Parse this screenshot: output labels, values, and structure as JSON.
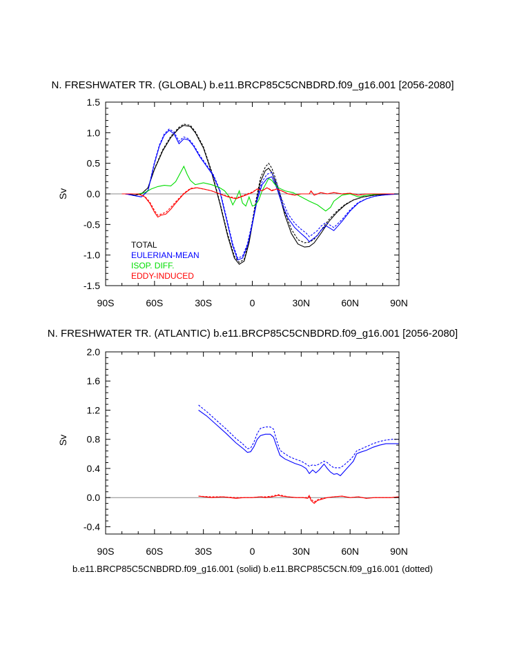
{
  "caption": "b.e11.BRCP85C5CNBDRD.f09_g16.001 (solid) b.e11.BRCP85C5CN.f09_g16.001 (dotted)",
  "colors": {
    "total": "#000000",
    "eulerian": "#0000ff",
    "isop": "#00dd00",
    "eddy": "#ff0000",
    "zero": "#888888"
  },
  "chart_data": [
    {
      "type": "line",
      "title": "N. FRESHWATER TR. (GLOBAL) b.e11.BRCP85C5CNBDRD.f09_g16.001 [2056-2080]",
      "xlabel": "",
      "ylabel": "Sv",
      "xlim": [
        -90,
        90
      ],
      "ylim": [
        -1.5,
        1.5
      ],
      "xticks": [
        -90,
        -60,
        -30,
        0,
        30,
        60,
        90
      ],
      "xticklabels": [
        "90S",
        "60S",
        "30S",
        "0",
        "30N",
        "60N",
        "90N"
      ],
      "yticks": [
        -1.5,
        -1.0,
        -0.5,
        0.0,
        0.5,
        1.0,
        1.5
      ],
      "yticklabels": [
        "-1.5",
        "-1.0",
        "-0.5",
        "0.0",
        "0.5",
        "1.0",
        "1.5"
      ],
      "legend": {
        "position": "lower-left",
        "entries": [
          "TOTAL",
          "EULERIAN-MEAN",
          "ISOP. DIFF.",
          "EDDY-INDUCED"
        ]
      },
      "series": [
        {
          "name": "TOTAL",
          "style": "solid",
          "color": "#000000",
          "x": [
            -78,
            -72,
            -68,
            -64,
            -60,
            -55,
            -50,
            -45,
            -42,
            -38,
            -35,
            -30,
            -25,
            -20,
            -15,
            -11,
            -8,
            -5,
            -2,
            2,
            5,
            8,
            10,
            12,
            14,
            17,
            20,
            24,
            28,
            32,
            35,
            38,
            42,
            47,
            52,
            57,
            62,
            68,
            75,
            80,
            90
          ],
          "y": [
            0,
            -0.02,
            0,
            0.1,
            0.4,
            0.7,
            0.92,
            1.07,
            1.12,
            1.1,
            1.0,
            0.75,
            0.35,
            -0.15,
            -0.7,
            -1.05,
            -1.15,
            -1.1,
            -0.8,
            -0.2,
            0.2,
            0.38,
            0.42,
            0.35,
            0.2,
            -0.05,
            -0.35,
            -0.65,
            -0.82,
            -0.87,
            -0.86,
            -0.8,
            -0.65,
            -0.45,
            -0.3,
            -0.18,
            -0.1,
            -0.05,
            -0.02,
            -0.01,
            0
          ]
        },
        {
          "name": "TOTAL (dotted)",
          "style": "dotted",
          "color": "#000000",
          "x": [
            -78,
            -72,
            -68,
            -64,
            -60,
            -55,
            -50,
            -45,
            -42,
            -38,
            -35,
            -30,
            -25,
            -20,
            -15,
            -11,
            -8,
            -5,
            -2,
            2,
            5,
            8,
            10,
            12,
            14,
            17,
            20,
            24,
            28,
            32,
            35,
            38,
            42,
            47,
            52,
            57,
            62,
            68,
            75,
            80,
            90
          ],
          "y": [
            0,
            -0.02,
            0,
            0.1,
            0.41,
            0.72,
            0.94,
            1.09,
            1.14,
            1.12,
            1.02,
            0.77,
            0.37,
            -0.13,
            -0.67,
            -1.02,
            -1.12,
            -1.07,
            -0.76,
            -0.14,
            0.26,
            0.44,
            0.5,
            0.42,
            0.27,
            0.0,
            -0.3,
            -0.58,
            -0.75,
            -0.8,
            -0.79,
            -0.74,
            -0.6,
            -0.42,
            -0.28,
            -0.17,
            -0.1,
            -0.05,
            -0.02,
            -0.01,
            0
          ]
        },
        {
          "name": "EULERIAN-MEAN",
          "style": "solid",
          "color": "#0000ff",
          "x": [
            -78,
            -72,
            -68,
            -64,
            -60,
            -57,
            -54,
            -51,
            -48,
            -45,
            -42,
            -39,
            -36,
            -32,
            -28,
            -24,
            -20,
            -16,
            -12,
            -9,
            -6,
            -3,
            0,
            3,
            6,
            9,
            12,
            15,
            18,
            22,
            26,
            30,
            33,
            35,
            38,
            40,
            42,
            45,
            47,
            50,
            55,
            60,
            65,
            70,
            75,
            80,
            90
          ],
          "y": [
            0,
            -0.03,
            -0.05,
            0.05,
            0.5,
            0.78,
            0.96,
            1.04,
            0.98,
            0.82,
            0.9,
            0.88,
            0.78,
            0.6,
            0.45,
            0.3,
            0.05,
            -0.4,
            -0.85,
            -1.08,
            -1.05,
            -0.85,
            -0.5,
            -0.1,
            0.15,
            0.25,
            0.28,
            0.1,
            -0.15,
            -0.4,
            -0.55,
            -0.65,
            -0.72,
            -0.78,
            -0.72,
            -0.68,
            -0.6,
            -0.52,
            -0.55,
            -0.6,
            -0.45,
            -0.28,
            -0.15,
            -0.08,
            -0.04,
            -0.02,
            0
          ]
        },
        {
          "name": "EULERIAN-MEAN (dotted)",
          "style": "dotted",
          "color": "#0000ff",
          "x": [
            -78,
            -72,
            -68,
            -64,
            -60,
            -57,
            -54,
            -51,
            -48,
            -45,
            -42,
            -39,
            -36,
            -32,
            -28,
            -24,
            -20,
            -16,
            -12,
            -9,
            -6,
            -3,
            0,
            3,
            6,
            9,
            12,
            15,
            18,
            22,
            26,
            30,
            33,
            35,
            38,
            40,
            42,
            45,
            47,
            50,
            55,
            60,
            65,
            70,
            75,
            80,
            90
          ],
          "y": [
            0,
            -0.03,
            -0.05,
            0.06,
            0.52,
            0.8,
            0.98,
            1.06,
            1.01,
            0.86,
            0.93,
            0.9,
            0.8,
            0.62,
            0.47,
            0.32,
            0.07,
            -0.37,
            -0.82,
            -1.05,
            -1.02,
            -0.82,
            -0.46,
            -0.05,
            0.2,
            0.32,
            0.35,
            0.17,
            -0.08,
            -0.33,
            -0.48,
            -0.58,
            -0.64,
            -0.7,
            -0.64,
            -0.6,
            -0.53,
            -0.47,
            -0.5,
            -0.55,
            -0.42,
            -0.26,
            -0.14,
            -0.08,
            -0.04,
            -0.02,
            0
          ]
        },
        {
          "name": "ISOP. DIFF.",
          "style": "solid",
          "color": "#00dd00",
          "x": [
            -80,
            -70,
            -66,
            -62,
            -58,
            -54,
            -50,
            -47,
            -44,
            -42,
            -40,
            -38,
            -35,
            -30,
            -25,
            -20,
            -17,
            -14,
            -12,
            -10,
            -8,
            -6,
            -4,
            -2,
            0,
            2,
            4,
            6,
            8,
            10,
            12,
            14,
            16,
            20,
            25,
            30,
            35,
            40,
            45,
            48,
            50,
            55,
            60,
            65,
            70,
            80,
            90
          ],
          "y": [
            0,
            0,
            0.02,
            0.08,
            0.12,
            0.14,
            0.13,
            0.2,
            0.35,
            0.45,
            0.32,
            0.22,
            0.15,
            0.18,
            0.15,
            0.1,
            0.05,
            -0.05,
            -0.18,
            -0.08,
            0.05,
            -0.15,
            -0.2,
            -0.05,
            -0.2,
            -0.18,
            -0.1,
            0.05,
            0.15,
            0.25,
            0.22,
            0.15,
            0.1,
            0.05,
            0.02,
            -0.05,
            -0.12,
            -0.18,
            -0.28,
            -0.22,
            -0.12,
            -0.02,
            0.0,
            -0.05,
            -0.02,
            0,
            0
          ]
        },
        {
          "name": "EDDY-INDUCED",
          "style": "solid",
          "color": "#ff0000",
          "x": [
            -80,
            -70,
            -66,
            -63,
            -60,
            -58,
            -56,
            -53,
            -50,
            -46,
            -42,
            -38,
            -34,
            -30,
            -25,
            -20,
            -15,
            -10,
            -5,
            0,
            3,
            6,
            9,
            12,
            15,
            18,
            22,
            26,
            30,
            35,
            36,
            38,
            42,
            46,
            50,
            55,
            60,
            65,
            70,
            80,
            90
          ],
          "y": [
            0,
            0,
            -0.05,
            -0.15,
            -0.3,
            -0.38,
            -0.35,
            -0.33,
            -0.25,
            -0.12,
            0.0,
            0.08,
            0.1,
            0.08,
            0.05,
            0.0,
            -0.05,
            -0.08,
            -0.03,
            0.02,
            0.08,
            0.05,
            0.1,
            0.05,
            0.08,
            0.05,
            0.0,
            -0.02,
            0.0,
            0.0,
            0.05,
            -0.02,
            0.02,
            0.0,
            0.02,
            0.0,
            0.01,
            -0.02,
            0.0,
            0,
            0
          ]
        },
        {
          "name": "EDDY-INDUCED (dotted)",
          "style": "dotted",
          "color": "#ff0000",
          "x": [
            -80,
            -70,
            -66,
            -63,
            -60,
            -58,
            -56,
            -53,
            -50,
            -46,
            -42,
            -38,
            -34,
            -30,
            -25,
            -20,
            -15,
            -10,
            -5,
            0,
            3,
            6,
            9,
            12,
            15,
            18,
            22,
            26,
            30,
            35,
            36,
            38,
            42,
            46,
            50,
            55,
            60,
            65,
            70,
            80,
            90
          ],
          "y": [
            0,
            0,
            -0.04,
            -0.13,
            -0.27,
            -0.35,
            -0.33,
            -0.3,
            -0.22,
            -0.1,
            0.01,
            0.09,
            0.1,
            0.08,
            0.05,
            0.0,
            -0.04,
            -0.07,
            -0.02,
            0.03,
            0.08,
            0.05,
            0.1,
            0.06,
            0.08,
            0.05,
            0.0,
            -0.02,
            0.0,
            0.0,
            0.04,
            -0.02,
            0.02,
            0.0,
            0.02,
            0.0,
            0.01,
            -0.02,
            0.0,
            0,
            0
          ]
        }
      ]
    },
    {
      "type": "line",
      "title": "N. FRESHWATER TR. (ATLANTIC) b.e11.BRCP85C5CNBDRD.f09_g16.001 [2056-2080]",
      "xlabel": "",
      "ylabel": "Sv",
      "xlim": [
        -90,
        90
      ],
      "ylim": [
        -0.5,
        2.0
      ],
      "xticks": [
        -90,
        -60,
        -30,
        0,
        30,
        60,
        90
      ],
      "xticklabels": [
        "90S",
        "60S",
        "30S",
        "0",
        "30N",
        "60N",
        "90N"
      ],
      "yticks": [
        -0.4,
        0.0,
        0.4,
        0.8,
        1.2,
        1.6,
        2.0
      ],
      "yticklabels": [
        "-0.4",
        "0.0",
        "0.4",
        "0.8",
        "1.2",
        "1.6",
        "2.0"
      ],
      "series": [
        {
          "name": "EULERIAN-MEAN",
          "style": "solid",
          "color": "#0000ff",
          "x": [
            -33,
            -28,
            -22,
            -16,
            -10,
            -6,
            -3,
            -1,
            1,
            3,
            5,
            8,
            11,
            13,
            15,
            17,
            20,
            23,
            26,
            30,
            33,
            35,
            37,
            39,
            41,
            44,
            46,
            48,
            50,
            52,
            54,
            56,
            58,
            60,
            62,
            64,
            66,
            70,
            74,
            78,
            82,
            86,
            90
          ],
          "y": [
            1.2,
            1.12,
            1.0,
            0.88,
            0.75,
            0.68,
            0.62,
            0.63,
            0.7,
            0.8,
            0.85,
            0.87,
            0.87,
            0.83,
            0.7,
            0.58,
            0.53,
            0.5,
            0.47,
            0.44,
            0.4,
            0.33,
            0.38,
            0.34,
            0.38,
            0.46,
            0.4,
            0.35,
            0.32,
            0.33,
            0.3,
            0.35,
            0.4,
            0.45,
            0.5,
            0.6,
            0.62,
            0.65,
            0.69,
            0.72,
            0.74,
            0.74,
            0.74
          ]
        },
        {
          "name": "EULERIAN-MEAN (dotted)",
          "style": "dotted",
          "color": "#0000ff",
          "x": [
            -33,
            -28,
            -22,
            -16,
            -10,
            -6,
            -3,
            -1,
            1,
            3,
            5,
            8,
            11,
            13,
            15,
            17,
            20,
            23,
            26,
            30,
            33,
            35,
            37,
            39,
            41,
            44,
            46,
            48,
            50,
            52,
            54,
            56,
            58,
            60,
            62,
            64,
            66,
            70,
            74,
            78,
            82,
            86,
            90
          ],
          "y": [
            1.27,
            1.18,
            1.06,
            0.94,
            0.81,
            0.74,
            0.67,
            0.68,
            0.76,
            0.88,
            0.95,
            0.97,
            0.97,
            0.94,
            0.78,
            0.65,
            0.6,
            0.56,
            0.53,
            0.5,
            0.46,
            0.43,
            0.45,
            0.44,
            0.46,
            0.5,
            0.48,
            0.44,
            0.41,
            0.41,
            0.41,
            0.44,
            0.48,
            0.52,
            0.57,
            0.64,
            0.66,
            0.7,
            0.74,
            0.77,
            0.79,
            0.8,
            0.8
          ]
        },
        {
          "name": "EDDY-INDUCED",
          "style": "solid",
          "color": "#ff0000",
          "x": [
            -33,
            -25,
            -18,
            -10,
            -5,
            0,
            5,
            8,
            12,
            16,
            18,
            22,
            27,
            31,
            34,
            35,
            36,
            38,
            40,
            43,
            46,
            50,
            55,
            60,
            65,
            70,
            75,
            80,
            85,
            90
          ],
          "y": [
            0.02,
            0.0,
            0.01,
            -0.01,
            0.0,
            0.0,
            0.01,
            0.0,
            0.01,
            0.03,
            0.02,
            0.01,
            0.0,
            0.0,
            -0.01,
            0.02,
            -0.04,
            -0.08,
            -0.04,
            -0.02,
            0.0,
            0.01,
            0.02,
            0.0,
            0.01,
            -0.01,
            0.0,
            0.0,
            0.0,
            0.01
          ]
        },
        {
          "name": "EDDY-INDUCED (dotted)",
          "style": "dotted",
          "color": "#ff0000",
          "x": [
            -33,
            -25,
            -18,
            -10,
            -5,
            0,
            5,
            8,
            12,
            16,
            18,
            22,
            27,
            31,
            34,
            35,
            36,
            38,
            40,
            43,
            46,
            50,
            55,
            60,
            65,
            70,
            75,
            80,
            85,
            90
          ],
          "y": [
            0.02,
            0.01,
            0.01,
            0.0,
            0.0,
            0.0,
            0.01,
            0.01,
            0.02,
            0.04,
            0.03,
            0.01,
            0.0,
            0.0,
            0.0,
            0.03,
            -0.02,
            -0.06,
            -0.03,
            -0.01,
            0.0,
            0.01,
            0.02,
            0.0,
            0.01,
            -0.01,
            0.0,
            0.0,
            0.0,
            0.01
          ]
        }
      ]
    }
  ]
}
